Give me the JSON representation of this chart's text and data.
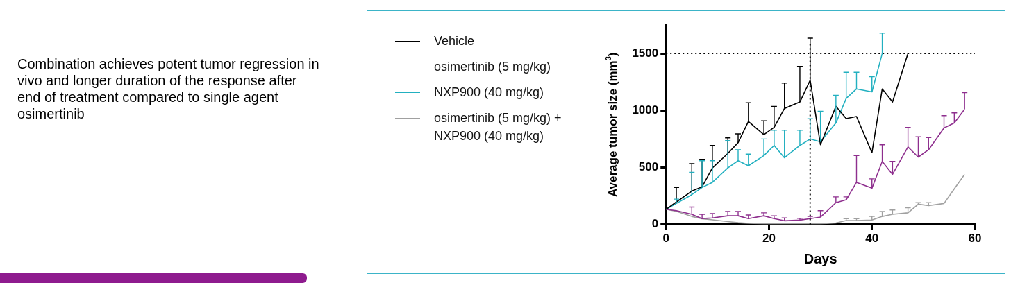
{
  "chart_data": {
    "type": "line",
    "annotations": [
      "Combination achieves potent tumor regression in vivo and longer duration of the response after end of treatment compared to single agent osimertinib"
    ],
    "xlabel": "Days",
    "ylabel": "Average tumor size (mm$^{3}$)",
    "xlim": [
      0,
      60
    ],
    "xticks": [
      0,
      20,
      40,
      60
    ],
    "ylim": [
      0,
      1750
    ],
    "yticks": [
      0,
      500,
      1000,
      1500
    ],
    "grid": false,
    "legend": "left",
    "marker": "none",
    "line_style": "solid",
    "ref_lines": [
      {
        "axis": "y",
        "value": 1500,
        "line_style": "dotted",
        "color": "#000000"
      },
      {
        "axis": "x",
        "value": 28,
        "line_style": "dotted",
        "color": "#000000"
      }
    ],
    "series": [
      {
        "name": "Vehicle",
        "color": "#000000",
        "x": [
          0,
          2,
          5,
          7,
          9,
          12,
          14,
          16,
          19,
          21,
          23,
          26,
          28,
          30,
          33,
          35,
          37,
          40,
          42,
          44,
          47
        ],
        "values": [
          133,
          197,
          292,
          330,
          496,
          623,
          718,
          903,
          788,
          852,
          1017,
          1074,
          1265,
          699,
          1036,
          928,
          947,
          630,
          1189,
          1074,
          1500
        ],
        "errors": [
          null,
          [
            197,
            324
          ],
          [
            292,
            534
          ],
          [
            330,
            572
          ],
          [
            496,
            693
          ],
          [
            623,
            760
          ],
          [
            718,
            795
          ],
          [
            903,
            1068
          ],
          [
            788,
            909
          ],
          [
            852,
            1036
          ],
          [
            1017,
            1240
          ],
          [
            1074,
            1386
          ],
          [
            1265,
            1634
          ],
          null,
          null,
          null,
          null,
          null,
          null,
          null,
          null
        ]
      },
      {
        "name": "osimertinib (5 mg/kg)",
        "color": "#8e2f8e",
        "x": [
          0,
          2,
          5,
          7,
          9,
          12,
          14,
          16,
          19,
          21,
          23,
          26,
          28,
          30,
          33,
          35,
          37,
          40,
          42,
          44,
          47,
          49,
          51,
          54,
          56,
          58
        ],
        "values": [
          133,
          121,
          89,
          51,
          57,
          76,
          76,
          51,
          76,
          51,
          32,
          38,
          51,
          64,
          191,
          216,
          369,
          318,
          553,
          439,
          680,
          591,
          655,
          846,
          890,
          1011
        ],
        "errors": [
          null,
          null,
          [
            89,
            153
          ],
          [
            51,
            89
          ],
          [
            57,
            95
          ],
          [
            76,
            114
          ],
          [
            76,
            114
          ],
          [
            51,
            83
          ],
          [
            76,
            102
          ],
          [
            51,
            76
          ],
          [
            32,
            57
          ],
          [
            38,
            53
          ],
          [
            51,
            70
          ],
          [
            64,
            121
          ],
          [
            191,
            242
          ],
          [
            216,
            242
          ],
          [
            369,
            604
          ],
          [
            318,
            400
          ],
          [
            553,
            699
          ],
          [
            439,
            553
          ],
          [
            680,
            852
          ],
          [
            591,
            769
          ],
          [
            655,
            763
          ],
          [
            846,
            954
          ],
          [
            890,
            979
          ],
          [
            1011,
            1157
          ]
        ]
      },
      {
        "name": "NXP900 (40 mg/kg)",
        "color": "#22b0c0",
        "x": [
          0,
          2,
          5,
          7,
          9,
          12,
          14,
          16,
          19,
          21,
          23,
          26,
          28,
          30,
          33,
          35,
          37,
          40,
          42
        ],
        "values": [
          133,
          184,
          261,
          324,
          369,
          496,
          559,
          515,
          604,
          693,
          585,
          693,
          750,
          725,
          890,
          1106,
          1189,
          1163,
          1500
        ],
        "errors": [
          null,
          [
            184,
            222
          ],
          [
            261,
            458
          ],
          [
            324,
            559
          ],
          [
            369,
            559
          ],
          [
            496,
            735
          ],
          [
            559,
            655
          ],
          [
            515,
            617
          ],
          [
            604,
            750
          ],
          [
            693,
            826
          ],
          [
            585,
            826
          ],
          [
            693,
            826
          ],
          [
            750,
            928
          ],
          [
            725,
            992
          ],
          [
            890,
            1132
          ],
          [
            1106,
            1335
          ],
          [
            1189,
            1335
          ],
          [
            1163,
            1297
          ],
          [
            1500,
            1678
          ]
        ]
      },
      {
        "name": "osimertinib (5 mg/kg) + NXP900 (40 mg/kg)",
        "color": "#a0a0a0",
        "x": [
          0,
          2,
          5,
          7,
          9,
          12,
          14,
          16,
          19,
          21,
          23,
          26,
          28,
          30,
          33,
          35,
          37,
          40,
          42,
          44,
          47,
          49,
          51,
          54,
          56,
          58
        ],
        "values": [
          133,
          115,
          70,
          50,
          40,
          25,
          15,
          10,
          5,
          5,
          5,
          5,
          5,
          5,
          13,
          34,
          34,
          38,
          70,
          89,
          102,
          178,
          165,
          184,
          312,
          439
        ],
        "errors": [
          null,
          null,
          null,
          null,
          null,
          null,
          null,
          null,
          null,
          null,
          null,
          null,
          null,
          null,
          null,
          [
            34,
            51
          ],
          [
            34,
            51
          ],
          [
            38,
            70
          ],
          [
            70,
            114
          ],
          [
            89,
            127
          ],
          [
            102,
            146
          ],
          [
            178,
            191
          ],
          [
            165,
            191
          ],
          null,
          null,
          null
        ]
      }
    ]
  }
}
